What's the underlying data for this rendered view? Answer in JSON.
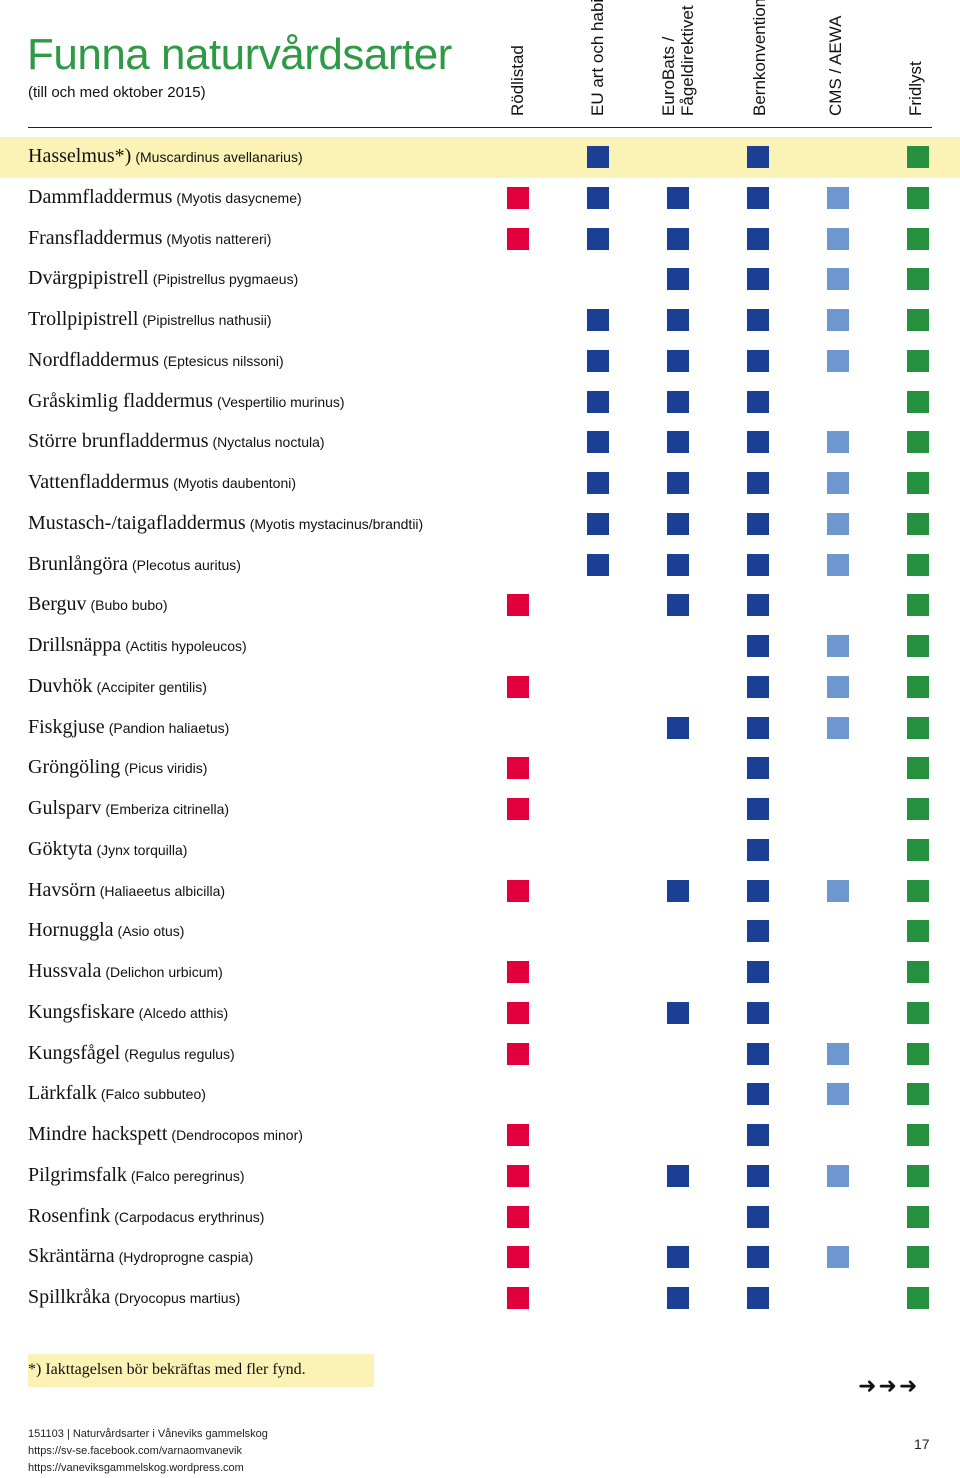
{
  "title": "Funna naturvårdsarter",
  "subtitle": "(till och med oktober 2015)",
  "columns": [
    {
      "lines": [
        "Rödlistad"
      ]
    },
    {
      "lines": [
        "EU art och habitat"
      ]
    },
    {
      "lines": [
        "EuroBats /",
        "Fågeldirektivet"
      ]
    },
    {
      "lines": [
        "Bernkonventionen"
      ]
    },
    {
      "lines": [
        "CMS / AEWA"
      ]
    },
    {
      "lines": [
        "Fridlyst"
      ]
    }
  ],
  "colors": {
    "red": "#e2003c",
    "blue": "#1a3f94",
    "lightblue": "#6e97cf",
    "green": "#25913f",
    "title": "#2e9a46",
    "highlight": "#fbf3b5"
  },
  "species": [
    {
      "name": "Hasselmus*)",
      "latin": "(Muscardinus avellanarius)",
      "marks": [
        0,
        1,
        0,
        1,
        0,
        1
      ],
      "highlight": true
    },
    {
      "name": "Dammfladdermus",
      "latin": "(Myotis dasycneme)",
      "marks": [
        1,
        1,
        1,
        1,
        1,
        1
      ]
    },
    {
      "name": "Fransfladdermus",
      "latin": "(Myotis nattereri)",
      "marks": [
        1,
        1,
        1,
        1,
        1,
        1
      ]
    },
    {
      "name": "Dvärgpipistrell",
      "latin": "(Pipistrellus pygmaeus)",
      "marks": [
        0,
        0,
        1,
        1,
        1,
        1
      ]
    },
    {
      "name": "Trollpipistrell",
      "latin": "(Pipistrellus nathusii)",
      "marks": [
        0,
        1,
        1,
        1,
        1,
        1
      ]
    },
    {
      "name": "Nordfladdermus",
      "latin": "(Eptesicus nilssoni)",
      "marks": [
        0,
        1,
        1,
        1,
        1,
        1
      ]
    },
    {
      "name": "Gråskimlig fladdermus",
      "latin": "(Vespertilio murinus)",
      "marks": [
        0,
        1,
        1,
        1,
        0,
        1
      ]
    },
    {
      "name": "Större brunfladdermus",
      "latin": "(Nyctalus noctula)",
      "marks": [
        0,
        1,
        1,
        1,
        1,
        1
      ]
    },
    {
      "name": "Vattenfladdermus",
      "latin": "(Myotis daubentoni)",
      "marks": [
        0,
        1,
        1,
        1,
        1,
        1
      ]
    },
    {
      "name": "Mustasch-/taigafladdermus",
      "latin": "(Myotis mystacinus/brandtii)",
      "marks": [
        0,
        1,
        1,
        1,
        1,
        1
      ]
    },
    {
      "name": "Brunlångöra",
      "latin": "(Plecotus auritus)",
      "marks": [
        0,
        1,
        1,
        1,
        1,
        1
      ]
    },
    {
      "name": "Berguv",
      "latin": "(Bubo bubo)",
      "marks": [
        1,
        0,
        1,
        1,
        0,
        1
      ]
    },
    {
      "name": "Drillsnäppa",
      "latin": "(Actitis hypoleucos)",
      "marks": [
        0,
        0,
        0,
        1,
        1,
        1
      ]
    },
    {
      "name": "Duvhök",
      "latin": "(Accipiter gentilis)",
      "marks": [
        1,
        0,
        0,
        1,
        1,
        1
      ]
    },
    {
      "name": "Fiskgjuse",
      "latin": "(Pandion haliaetus)",
      "marks": [
        0,
        0,
        1,
        1,
        1,
        1
      ]
    },
    {
      "name": "Gröngöling",
      "latin": "(Picus viridis)",
      "marks": [
        1,
        0,
        0,
        1,
        0,
        1
      ]
    },
    {
      "name": "Gulsparv",
      "latin": "(Emberiza citrinella)",
      "marks": [
        1,
        0,
        0,
        1,
        0,
        1
      ]
    },
    {
      "name": "Göktyta",
      "latin": "(Jynx torquilla)",
      "marks": [
        0,
        0,
        0,
        1,
        0,
        1
      ]
    },
    {
      "name": "Havsörn",
      "latin": "(Haliaeetus albicilla)",
      "marks": [
        1,
        0,
        1,
        1,
        1,
        1
      ]
    },
    {
      "name": "Hornuggla",
      "latin": "(Asio otus)",
      "marks": [
        0,
        0,
        0,
        1,
        0,
        1
      ]
    },
    {
      "name": "Hussvala",
      "latin": "(Delichon urbicum)",
      "marks": [
        1,
        0,
        0,
        1,
        0,
        1
      ]
    },
    {
      "name": "Kungsfiskare",
      "latin": "(Alcedo atthis)",
      "marks": [
        1,
        0,
        1,
        1,
        0,
        1
      ]
    },
    {
      "name": "Kungsfågel",
      "latin": "(Regulus regulus)",
      "marks": [
        1,
        0,
        0,
        1,
        1,
        1
      ]
    },
    {
      "name": "Lärkfalk",
      "latin": "(Falco subbuteo)",
      "marks": [
        0,
        0,
        0,
        1,
        1,
        1
      ]
    },
    {
      "name": "Mindre hackspett",
      "latin": "(Dendrocopos minor)",
      "marks": [
        1,
        0,
        0,
        1,
        0,
        1
      ]
    },
    {
      "name": "Pilgrimsfalk",
      "latin": "(Falco peregrinus)",
      "marks": [
        1,
        0,
        1,
        1,
        1,
        1
      ]
    },
    {
      "name": "Rosenfink",
      "latin": "(Carpodacus erythrinus)",
      "marks": [
        1,
        0,
        0,
        1,
        0,
        1
      ]
    },
    {
      "name": "Skräntärna",
      "latin": "(Hydroprogne caspia)",
      "marks": [
        1,
        0,
        1,
        1,
        1,
        1
      ]
    },
    {
      "name": "Spillkråka",
      "latin": "(Dryocopus martius)",
      "marks": [
        1,
        0,
        1,
        1,
        0,
        1
      ]
    }
  ],
  "footnote": "*) Iakttagelsen bör bekräftas med fler fynd.",
  "arrows": "➜➜➜",
  "footer": {
    "line1": "151103  |  Naturvårdsarter i Våneviks gammelskog",
    "line2": "https://sv-se.facebook.com/varnaomvanevik",
    "line3": "https://vaneviksgammelskog.wordpress.com",
    "page": "17"
  }
}
